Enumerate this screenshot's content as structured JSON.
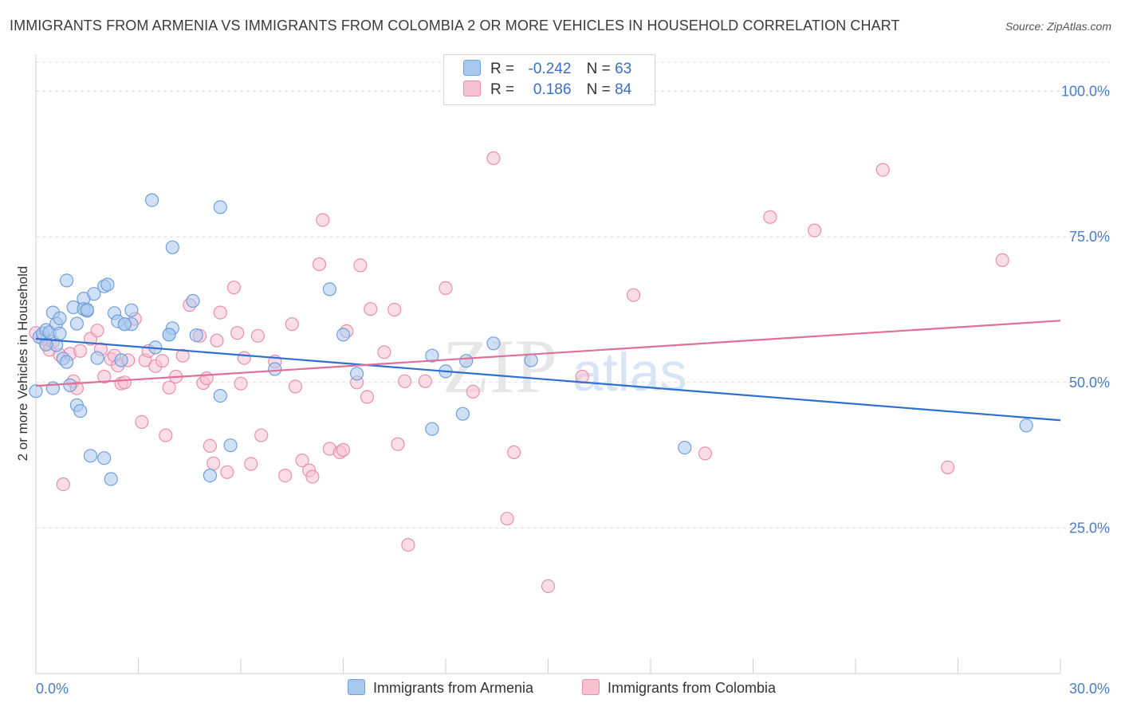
{
  "title": "IMMIGRANTS FROM ARMENIA VS IMMIGRANTS FROM COLOMBIA 2 OR MORE VEHICLES IN HOUSEHOLD CORRELATION CHART",
  "source": "Source: ZipAtlas.com",
  "watermark": {
    "zip": "ZIP",
    "atlas": "atlas"
  },
  "legend": {
    "rows": [
      {
        "r_label": "R =",
        "r_value": "-0.242",
        "n_label": "N =",
        "n_value": "63",
        "color": "#a9c8ef",
        "border": "#6f9fde"
      },
      {
        "r_label": "R =",
        "r_value": "0.186",
        "n_label": "N =",
        "n_value": "84",
        "color": "#f6c1d1",
        "border": "#ea8fae"
      }
    ]
  },
  "bottom_legend": [
    "Immigrants from Armenia",
    "Immigrants from Colombia"
  ],
  "chart_data": {
    "type": "scatter",
    "xlabel": "",
    "ylabel": "2 or more Vehicles in Household",
    "xlim": [
      0,
      30
    ],
    "ylim": [
      0,
      105
    ],
    "x_tick_labels": [
      "0.0%",
      "30.0%"
    ],
    "y_ticks": [
      25,
      50,
      75,
      100
    ],
    "y_tick_labels": [
      "25.0%",
      "50.0%",
      "75.0%",
      "100.0%"
    ],
    "grid": true,
    "series": [
      {
        "name": "Immigrants from Armenia",
        "color": "#6f9fde",
        "fill": "#a9c8ef",
        "line_color": "#2f6fcf",
        "trend": [
          [
            0,
            57.5
          ],
          [
            30,
            43.5
          ]
        ],
        "points": [
          [
            0.0,
            48.5
          ],
          [
            0.1,
            57.8
          ],
          [
            0.2,
            58.4
          ],
          [
            0.3,
            59.0
          ],
          [
            0.4,
            58.6
          ],
          [
            0.5,
            62.0
          ],
          [
            0.5,
            49.0
          ],
          [
            0.6,
            56.4
          ],
          [
            0.6,
            60.1
          ],
          [
            0.7,
            61.0
          ],
          [
            0.8,
            54.1
          ],
          [
            0.9,
            53.5
          ],
          [
            0.9,
            67.5
          ],
          [
            1.0,
            49.5
          ],
          [
            1.1,
            62.9
          ],
          [
            1.2,
            46.1
          ],
          [
            1.2,
            60.1
          ],
          [
            1.3,
            45.1
          ],
          [
            1.4,
            64.4
          ],
          [
            1.4,
            62.6
          ],
          [
            1.5,
            62.3
          ],
          [
            1.6,
            37.4
          ],
          [
            1.7,
            65.2
          ],
          [
            1.8,
            54.2
          ],
          [
            2.0,
            66.5
          ],
          [
            2.0,
            37.0
          ],
          [
            2.1,
            66.8
          ],
          [
            2.2,
            33.4
          ],
          [
            2.3,
            61.9
          ],
          [
            2.4,
            60.5
          ],
          [
            2.5,
            53.8
          ],
          [
            2.6,
            60.0
          ],
          [
            2.8,
            62.4
          ],
          [
            2.8,
            60.0
          ],
          [
            3.4,
            81.3
          ],
          [
            3.5,
            56.0
          ],
          [
            3.9,
            58.2
          ],
          [
            4.0,
            59.3
          ],
          [
            4.0,
            73.2
          ],
          [
            4.6,
            64.0
          ],
          [
            4.7,
            58.1
          ],
          [
            5.1,
            34.0
          ],
          [
            5.4,
            47.7
          ],
          [
            5.4,
            80.1
          ],
          [
            5.7,
            39.2
          ],
          [
            7.0,
            52.3
          ],
          [
            8.6,
            66.0
          ],
          [
            9.0,
            58.2
          ],
          [
            9.4,
            51.5
          ],
          [
            11.6,
            54.6
          ],
          [
            11.6,
            42.0
          ],
          [
            12.0,
            51.9
          ],
          [
            12.5,
            44.6
          ],
          [
            12.6,
            53.7
          ],
          [
            13.4,
            56.7
          ],
          [
            14.5,
            53.8
          ],
          [
            19.0,
            38.8
          ],
          [
            29.0,
            42.6
          ],
          [
            0.3,
            56.5
          ],
          [
            0.7,
            58.4
          ],
          [
            1.5,
            62.5
          ],
          [
            2.6,
            60.0
          ],
          [
            3.9,
            58.2
          ]
        ]
      },
      {
        "name": "Immigrants from Colombia",
        "color": "#ea8fae",
        "fill": "#f6c1d1",
        "line_color": "#e07099",
        "trend": [
          [
            0,
            49.4
          ],
          [
            30,
            60.6
          ]
        ],
        "points": [
          [
            0.0,
            58.5
          ],
          [
            0.2,
            57.5
          ],
          [
            0.3,
            56.6
          ],
          [
            0.4,
            55.6
          ],
          [
            0.5,
            57.0
          ],
          [
            0.7,
            54.7
          ],
          [
            0.8,
            32.5
          ],
          [
            1.0,
            54.9
          ],
          [
            1.1,
            50.2
          ],
          [
            1.2,
            49.0
          ],
          [
            1.3,
            55.4
          ],
          [
            1.6,
            57.5
          ],
          [
            1.8,
            58.9
          ],
          [
            1.9,
            55.7
          ],
          [
            2.0,
            51.0
          ],
          [
            2.2,
            54.0
          ],
          [
            2.3,
            54.6
          ],
          [
            2.4,
            52.9
          ],
          [
            2.5,
            49.8
          ],
          [
            2.6,
            50.0
          ],
          [
            2.7,
            53.8
          ],
          [
            2.9,
            60.9
          ],
          [
            3.1,
            43.2
          ],
          [
            3.2,
            53.8
          ],
          [
            3.3,
            55.4
          ],
          [
            3.5,
            52.8
          ],
          [
            3.7,
            53.7
          ],
          [
            3.8,
            40.9
          ],
          [
            3.9,
            49.1
          ],
          [
            4.1,
            51.0
          ],
          [
            4.3,
            54.6
          ],
          [
            4.5,
            63.3
          ],
          [
            4.8,
            58.0
          ],
          [
            4.9,
            49.9
          ],
          [
            5.0,
            50.7
          ],
          [
            5.1,
            39.1
          ],
          [
            5.2,
            36.1
          ],
          [
            5.3,
            57.2
          ],
          [
            5.4,
            62.0
          ],
          [
            5.6,
            34.6
          ],
          [
            5.8,
            66.3
          ],
          [
            5.9,
            58.5
          ],
          [
            6.0,
            49.8
          ],
          [
            6.1,
            54.2
          ],
          [
            6.3,
            36.0
          ],
          [
            6.5,
            58.0
          ],
          [
            6.6,
            40.9
          ],
          [
            7.0,
            53.6
          ],
          [
            7.3,
            34.0
          ],
          [
            7.5,
            60.0
          ],
          [
            7.6,
            49.3
          ],
          [
            7.8,
            36.6
          ],
          [
            8.0,
            34.9
          ],
          [
            8.1,
            33.8
          ],
          [
            8.3,
            70.3
          ],
          [
            8.4,
            77.9
          ],
          [
            8.6,
            38.6
          ],
          [
            8.9,
            38.0
          ],
          [
            9.0,
            38.4
          ],
          [
            9.1,
            58.8
          ],
          [
            9.4,
            50.0
          ],
          [
            9.5,
            70.1
          ],
          [
            9.7,
            47.5
          ],
          [
            9.8,
            62.6
          ],
          [
            10.2,
            55.2
          ],
          [
            10.5,
            62.5
          ],
          [
            10.6,
            39.4
          ],
          [
            10.8,
            50.2
          ],
          [
            10.9,
            22.1
          ],
          [
            11.4,
            50.2
          ],
          [
            12.0,
            66.2
          ],
          [
            12.8,
            48.4
          ],
          [
            13.4,
            88.5
          ],
          [
            13.8,
            26.6
          ],
          [
            14.0,
            38.0
          ],
          [
            15.0,
            15.0
          ],
          [
            16.0,
            51.0
          ],
          [
            17.5,
            65.0
          ],
          [
            19.6,
            37.8
          ],
          [
            21.5,
            78.4
          ],
          [
            22.8,
            76.1
          ],
          [
            24.8,
            86.5
          ],
          [
            26.7,
            35.4
          ],
          [
            28.3,
            71.0
          ]
        ]
      }
    ]
  }
}
